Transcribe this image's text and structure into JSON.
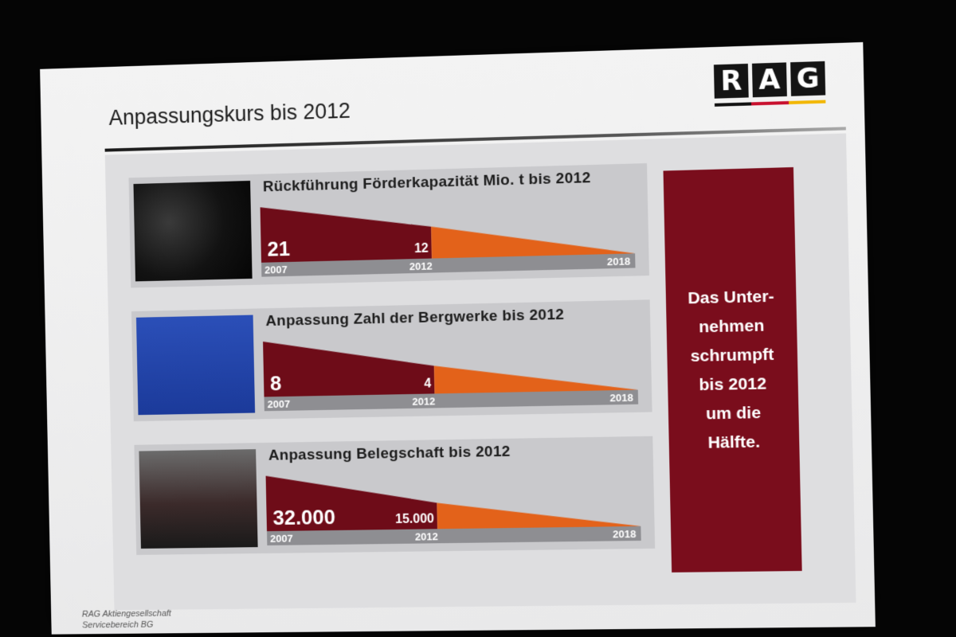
{
  "slide": {
    "title": "Anpassungskurs bis 2012",
    "logo_letters": [
      "R",
      "A",
      "G"
    ],
    "side_note": "Das Unter-\nnehmen\nschrumpft\nbis 2012\num die\nHälfte.",
    "footer_line1": "RAG Aktiengesellschaft",
    "footer_line2": "Servicebereich BG"
  },
  "colors": {
    "dark_red": "#6e0c18",
    "orange": "#e3621a",
    "axis_bar": "#8e8e92",
    "flag_black": "#111111",
    "flag_red": "#c8102e",
    "flag_gold": "#f2b705"
  },
  "chart_data": [
    {
      "type": "area",
      "title": "Rückführung Förderkapazität Mio. t bis 2012",
      "x": [
        "2007",
        "2012",
        "2018"
      ],
      "values": [
        21,
        12,
        0
      ],
      "value_labels": [
        "21",
        "12",
        ""
      ],
      "photo": "coal-photo"
    },
    {
      "type": "area",
      "title": "Anpassung Zahl der Bergwerke bis 2012",
      "x": [
        "2007",
        "2012",
        "2018"
      ],
      "values": [
        8,
        4,
        0
      ],
      "value_labels": [
        "8",
        "4",
        ""
      ],
      "photo": "headframe-photo"
    },
    {
      "type": "area",
      "title": "Anpassung Belegschaft bis 2012",
      "x": [
        "2007",
        "2012",
        "2018"
      ],
      "values": [
        32000,
        15000,
        0
      ],
      "value_labels": [
        "32.000",
        "15.000",
        ""
      ],
      "photo": "workers-photo"
    }
  ]
}
